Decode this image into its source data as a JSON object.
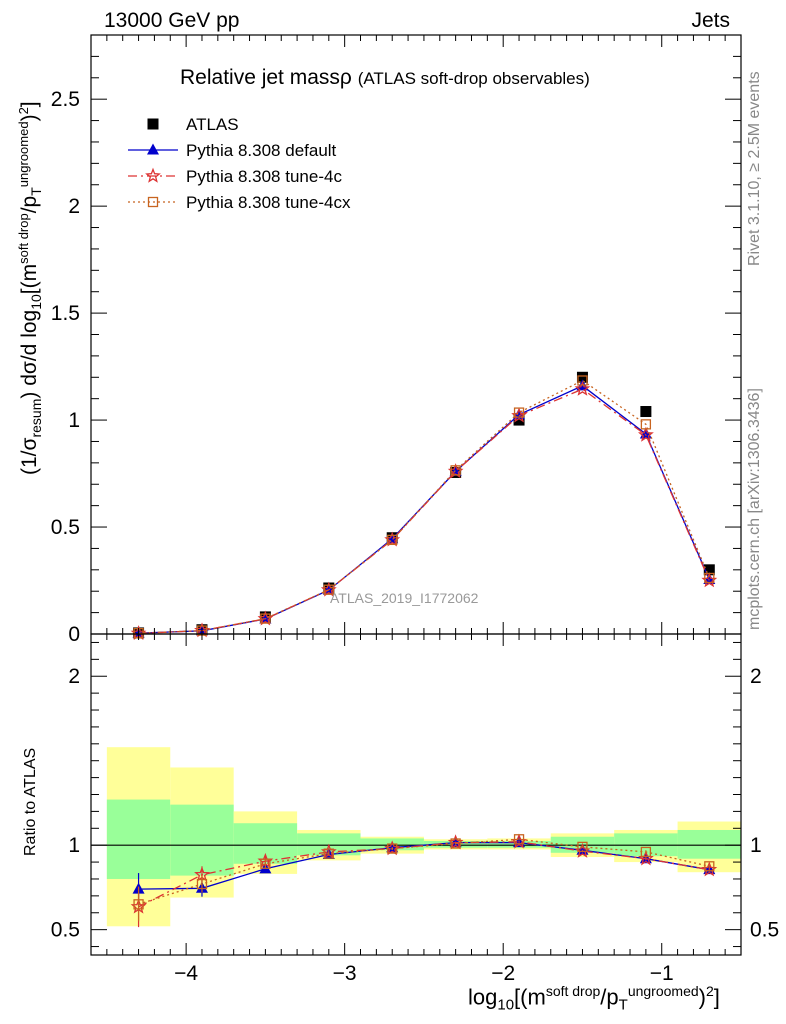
{
  "header": {
    "left": "13000 GeV pp",
    "right": "Jets"
  },
  "side_labels": {
    "rivet": "Rivet 3.1.10, ≥ 2.5M events",
    "mcplots": "mcplots.cern.ch [arXiv:1306.3436]"
  },
  "watermark": "ATLAS_2019_I1772062",
  "colors": {
    "data": "#000000",
    "default": "#0000cc",
    "tune4c": "#dd3333",
    "tune4cx": "#c86420",
    "band_inner": "#99ff99",
    "band_outer": "#ffff99"
  },
  "chart_data": [
    {
      "type": "line",
      "panel": "main",
      "title": "Relative jet massρ",
      "subtitle": "(ATLAS soft-drop observables)",
      "ylabel": "(1/σresum) dσ/d log10[(m^soft drop/pT^ungroomed)^2]",
      "xlim": [
        -4.6,
        -0.5
      ],
      "ylim": [
        0,
        2.8
      ],
      "yticks": [
        0,
        0.5,
        1,
        1.5,
        2,
        2.5
      ],
      "ytick_labels": [
        "0",
        "0.5",
        "1",
        "1.5",
        "2",
        "2.5"
      ],
      "x": [
        -4.3,
        -3.9,
        -3.5,
        -3.1,
        -2.7,
        -2.3,
        -1.9,
        -1.5,
        -1.1,
        -0.7
      ],
      "legend_placement": "top-left",
      "series": [
        {
          "name": "ATLAS",
          "values": [
            0.005,
            0.02,
            0.08,
            0.215,
            0.45,
            0.755,
            1.0,
            1.2,
            1.04,
            0.3
          ],
          "marker": "square",
          "color": "#000000"
        },
        {
          "name": "Pythia 8.308 default",
          "values": [
            0.004,
            0.015,
            0.07,
            0.205,
            0.445,
            0.76,
            1.025,
            1.16,
            0.935,
            0.255
          ],
          "marker": "triangle",
          "color": "#0000cc",
          "style": "solid"
        },
        {
          "name": "Pythia 8.308 tune-4c",
          "values": [
            0.003,
            0.016,
            0.071,
            0.206,
            0.44,
            0.76,
            1.02,
            1.145,
            0.93,
            0.25
          ],
          "marker": "star",
          "color": "#dd3333",
          "style": "dashdot"
        },
        {
          "name": "Pythia 8.308 tune-4cx",
          "values": [
            0.004,
            0.016,
            0.072,
            0.207,
            0.44,
            0.765,
            1.035,
            1.185,
            0.98,
            0.262
          ],
          "marker": "open-square",
          "color": "#c86420",
          "style": "dotted"
        }
      ]
    },
    {
      "type": "line",
      "panel": "ratio",
      "ylabel": "Ratio to ATLAS",
      "xlabel": "log10[(m^soft drop/pT^ungroomed)^2]",
      "xlim": [
        -4.6,
        -0.5
      ],
      "ylim": [
        0.35,
        2.25
      ],
      "yticks": [
        0.5,
        1,
        2
      ],
      "ytick_labels": [
        "0.5",
        "1",
        "2"
      ],
      "xticks": [
        -4,
        -3,
        -2,
        -1
      ],
      "xtick_labels": [
        "−4",
        "−3",
        "−2",
        "−1"
      ],
      "x": [
        -4.3,
        -3.9,
        -3.5,
        -3.1,
        -2.7,
        -2.3,
        -1.9,
        -1.5,
        -1.1,
        -0.7
      ],
      "bin_edges": [
        -4.5,
        -4.1,
        -3.7,
        -3.3,
        -2.9,
        -2.5,
        -2.1,
        -1.7,
        -1.3,
        -0.9,
        -0.5
      ],
      "band_inner": {
        "lo": [
          0.8,
          0.82,
          0.89,
          0.94,
          0.97,
          0.985,
          0.985,
          0.955,
          0.935,
          0.92
        ],
        "hi": [
          1.27,
          1.24,
          1.13,
          1.07,
          1.04,
          1.025,
          1.025,
          1.05,
          1.07,
          1.09
        ]
      },
      "band_outer": {
        "lo": [
          0.52,
          0.69,
          0.83,
          0.91,
          0.95,
          0.975,
          0.975,
          0.93,
          0.9,
          0.84
        ],
        "hi": [
          1.58,
          1.46,
          1.2,
          1.09,
          1.05,
          1.035,
          1.04,
          1.07,
          1.09,
          1.14
        ]
      },
      "reference_line": 1,
      "series": [
        {
          "name": "Pythia 8.308 default",
          "values": [
            0.74,
            0.745,
            0.86,
            0.945,
            0.985,
            1.015,
            1.015,
            0.97,
            0.92,
            0.855
          ],
          "err": [
            0.095,
            0.05,
            0.02,
            0.01,
            0.008,
            0.006,
            0.006,
            0.008,
            0.01,
            0.012
          ],
          "marker": "triangle",
          "color": "#0000cc",
          "style": "solid"
        },
        {
          "name": "Pythia 8.308 tune-4c",
          "values": [
            0.635,
            0.825,
            0.905,
            0.96,
            0.98,
            1.015,
            1.02,
            0.965,
            0.92,
            0.855
          ],
          "err": [
            0.12,
            0.05,
            0.03,
            0.012,
            0.008,
            0.006,
            0.006,
            0.008,
            0.01,
            0.012
          ],
          "marker": "star",
          "color": "#dd3333",
          "style": "dashdot"
        },
        {
          "name": "Pythia 8.308 tune-4cx",
          "values": [
            0.65,
            0.77,
            0.89,
            0.95,
            0.98,
            1.01,
            1.035,
            0.99,
            0.96,
            0.875
          ],
          "err": [
            0.1,
            0.05,
            0.025,
            0.012,
            0.008,
            0.006,
            0.006,
            0.008,
            0.01,
            0.012
          ],
          "marker": "open-square",
          "color": "#c86420",
          "style": "dotted"
        }
      ]
    }
  ]
}
